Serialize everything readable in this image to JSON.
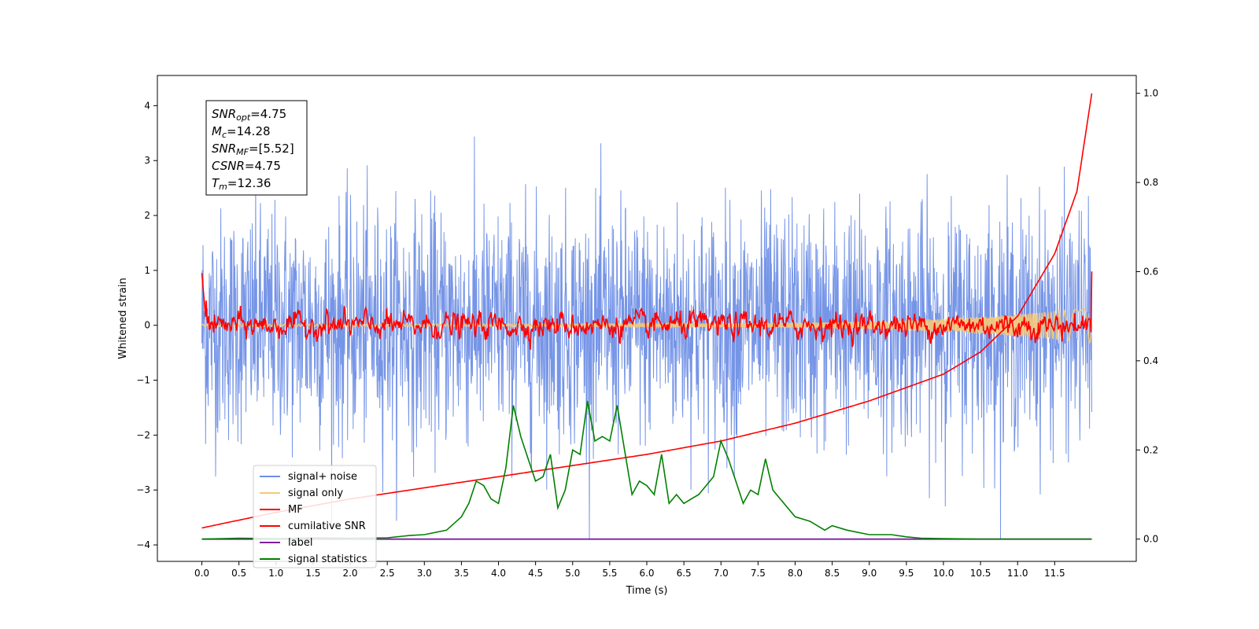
{
  "chart_data": {
    "type": "line",
    "xlabel": "Time (s)",
    "ylabel_left": "Whitened strain",
    "ylabel_right": "",
    "xlim": [
      -0.6,
      12.6
    ],
    "ylim_left": [
      -4.3,
      4.55
    ],
    "ylim_right": [
      -0.05,
      1.04
    ],
    "x_ticks": [
      "0.0",
      "0.5",
      "1.0",
      "1.5",
      "2.0",
      "2.5",
      "3.0",
      "3.5",
      "4.0",
      "4.5",
      "5.0",
      "5.5",
      "6.0",
      "6.5",
      "7.0",
      "7.5",
      "8.0",
      "8.5",
      "9.0",
      "9.5",
      "10.0",
      "10.5",
      "11.0",
      "11.5"
    ],
    "y_ticks_left": [
      "4",
      "3",
      "2",
      "1",
      "0",
      "−1",
      "−2",
      "−3",
      "−4"
    ],
    "y_ticks_right": [
      "1.0",
      "0.8",
      "0.6",
      "0.4",
      "0.2",
      "0.0"
    ],
    "grid": false,
    "legend_position": "lower-left",
    "info_box": {
      "position": "top-left",
      "lines": [
        {
          "label": "SNR",
          "sub": "opt",
          "value": "=4.75"
        },
        {
          "label": "M",
          "sub": "c",
          "value": "=14.28"
        },
        {
          "label": "SNR",
          "sub": "MF",
          "value": "=[5.52]"
        },
        {
          "label": "CSNR",
          "sub": "",
          "value": "=4.75"
        },
        {
          "label": "T",
          "sub": "m",
          "value": "=12.36"
        }
      ]
    },
    "series": [
      {
        "name": "signal+ noise",
        "color": "#6f8fe6",
        "axis": "left",
        "note": "dense whitened noise, roughly ±1.5 with peaks to ±3.5"
      },
      {
        "name": "signal only",
        "color": "#f5c97a",
        "axis": "left",
        "note": "chirp growing in amplitude toward the end"
      },
      {
        "name": "MF",
        "color": "#ff0000",
        "axis": "left",
        "note": "matched filter output, roughly ±0.3"
      },
      {
        "name": "cumilative SNR",
        "color": "#ff0000",
        "axis": "right",
        "x": [
          0.0,
          1,
          2,
          3,
          4,
          5,
          6,
          7,
          8,
          9,
          10,
          10.5,
          11,
          11.5,
          11.8,
          12.0
        ],
        "y": [
          0.025,
          0.06,
          0.09,
          0.115,
          0.14,
          0.165,
          0.19,
          0.22,
          0.26,
          0.31,
          0.37,
          0.42,
          0.5,
          0.64,
          0.78,
          1.0
        ]
      },
      {
        "name": "label",
        "color": "#7b1fa2",
        "axis": "right",
        "x": [
          0.0,
          12.0
        ],
        "y": [
          0.0,
          0.0
        ]
      },
      {
        "name": "signal statistics",
        "color": "#008000",
        "axis": "right",
        "x": [
          0.0,
          0.5,
          1.0,
          1.5,
          2.0,
          2.5,
          2.8,
          3.0,
          3.3,
          3.5,
          3.6,
          3.7,
          3.8,
          3.9,
          4.0,
          4.1,
          4.2,
          4.3,
          4.4,
          4.5,
          4.6,
          4.7,
          4.8,
          4.9,
          5.0,
          5.1,
          5.2,
          5.3,
          5.4,
          5.5,
          5.6,
          5.7,
          5.8,
          5.9,
          6.0,
          6.1,
          6.2,
          6.3,
          6.4,
          6.5,
          6.6,
          6.7,
          6.8,
          6.9,
          7.0,
          7.1,
          7.2,
          7.3,
          7.4,
          7.5,
          7.6,
          7.7,
          7.8,
          8.0,
          8.2,
          8.4,
          8.5,
          8.7,
          9.0,
          9.3,
          9.5,
          9.7,
          10.0,
          10.5,
          11.0,
          11.5,
          12.0
        ],
        "y": [
          0.0,
          0.002,
          0.001,
          0.003,
          0.002,
          0.003,
          0.008,
          0.01,
          0.02,
          0.05,
          0.08,
          0.13,
          0.12,
          0.09,
          0.08,
          0.16,
          0.3,
          0.23,
          0.18,
          0.13,
          0.14,
          0.19,
          0.07,
          0.11,
          0.2,
          0.19,
          0.31,
          0.22,
          0.23,
          0.22,
          0.3,
          0.2,
          0.1,
          0.13,
          0.12,
          0.1,
          0.19,
          0.08,
          0.1,
          0.08,
          0.09,
          0.1,
          0.12,
          0.14,
          0.22,
          0.18,
          0.13,
          0.08,
          0.11,
          0.1,
          0.18,
          0.11,
          0.09,
          0.05,
          0.04,
          0.02,
          0.03,
          0.02,
          0.01,
          0.01,
          0.005,
          0.002,
          0.001,
          0.0,
          0.0,
          0.0,
          0.0
        ]
      }
    ]
  }
}
